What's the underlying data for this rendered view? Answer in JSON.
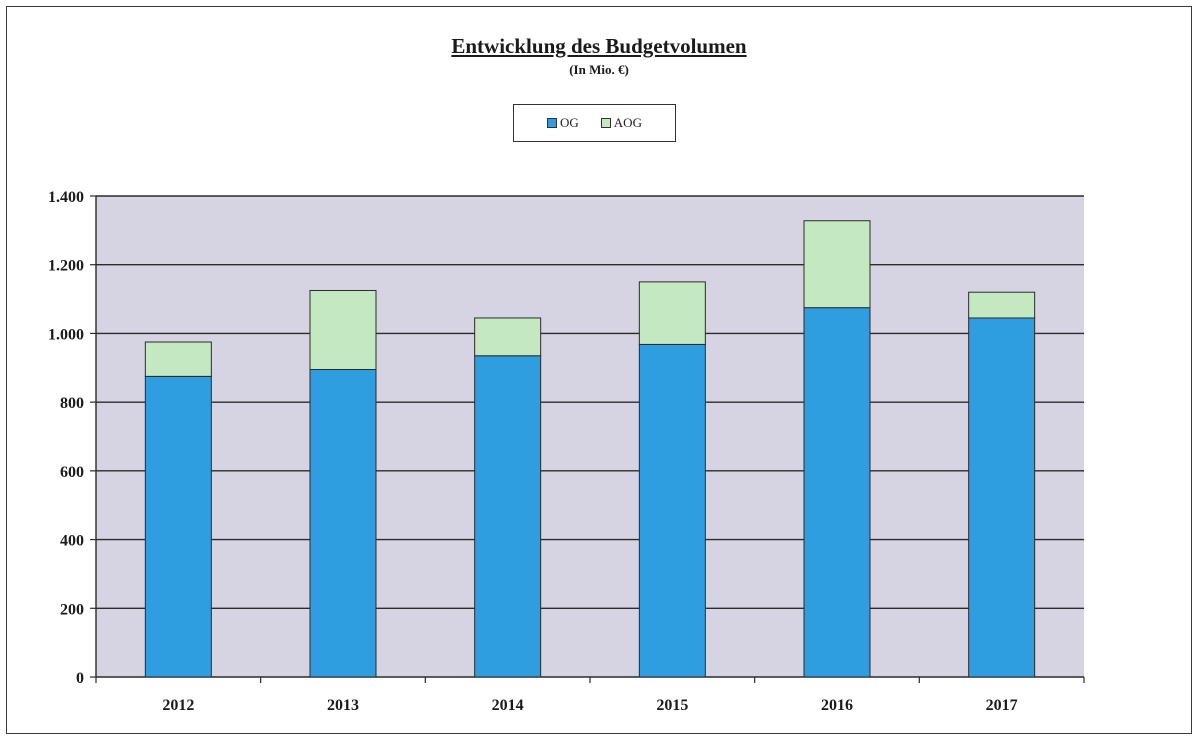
{
  "chart_data": {
    "type": "bar",
    "stacked": true,
    "title": "Entwicklung des Budgetvolumen",
    "subtitle": "(In Mio. €)",
    "categories": [
      "2012",
      "2013",
      "2014",
      "2015",
      "2016",
      "2017"
    ],
    "series": [
      {
        "name": "OG",
        "color": "#2f9ee0",
        "values": [
          875,
          895,
          935,
          968,
          1075,
          1045
        ]
      },
      {
        "name": "AOG",
        "color": "#c4e8c0",
        "values": [
          100,
          230,
          110,
          182,
          253,
          75
        ]
      }
    ],
    "ylim": [
      0,
      1400
    ],
    "yticks": [
      0,
      200,
      400,
      600,
      800,
      1000,
      1200,
      1400
    ],
    "ytick_labels": [
      "0",
      "200",
      "400",
      "600",
      "800",
      "1.000",
      "1.200",
      "1.400"
    ],
    "grid": true,
    "plot_background": "#d6d4e3",
    "legend_position": "top-center"
  }
}
